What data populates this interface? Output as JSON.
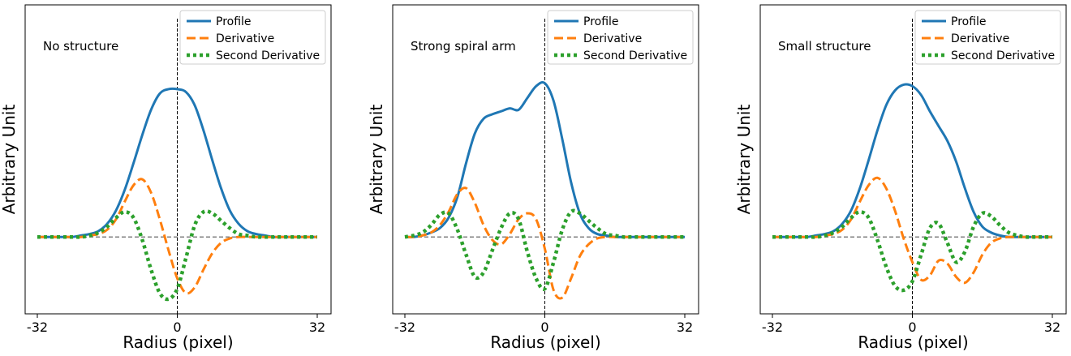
{
  "figure": {
    "legend_labels": [
      "Profile",
      "Derivative",
      "Second Derivative"
    ],
    "legend_location": "top-right",
    "colors": {
      "profile": "#1f77b4",
      "derivative": "#ff7f0e",
      "second": "#2ca02c",
      "baseline": "#808080",
      "center": "#000000"
    }
  },
  "chart_data": [
    {
      "type": "line",
      "annotation": "No structure",
      "xlabel": "Radius (pixel)",
      "ylabel": "Arbitrary Unit",
      "xticks": [
        "-32",
        "0",
        "32"
      ],
      "xlim": [
        -32,
        32
      ],
      "ylim": [
        -0.52,
        1.57
      ],
      "grid": false,
      "x": [
        -32,
        -30,
        -28,
        -26,
        -24,
        -22,
        -20,
        -18,
        -16,
        -14,
        -12,
        -10,
        -8,
        -6,
        -4,
        -2,
        0,
        2,
        4,
        6,
        8,
        10,
        12,
        14,
        16,
        18,
        20,
        22,
        24,
        26,
        28,
        30,
        32
      ],
      "series": [
        {
          "name": "Profile",
          "style": "solid",
          "values": [
            0,
            0,
            0,
            0,
            0,
            0.01,
            0.02,
            0.04,
            0.09,
            0.18,
            0.32,
            0.5,
            0.69,
            0.86,
            0.97,
            1.0,
            1.0,
            0.98,
            0.89,
            0.72,
            0.52,
            0.33,
            0.18,
            0.09,
            0.04,
            0.02,
            0.01,
            0,
            0,
            0,
            0,
            0,
            0
          ]
        },
        {
          "name": "Derivative",
          "style": "dashed",
          "values": [
            0,
            0,
            0,
            0,
            0,
            0,
            0.01,
            0.02,
            0.05,
            0.12,
            0.24,
            0.35,
            0.39,
            0.3,
            0.12,
            -0.09,
            -0.28,
            -0.38,
            -0.34,
            -0.22,
            -0.11,
            -0.04,
            -0.01,
            0,
            0,
            0,
            0,
            0,
            0,
            0,
            0,
            0,
            0
          ]
        },
        {
          "name": "Second Derivative",
          "style": "dotted",
          "values": [
            0,
            0,
            0,
            0,
            0,
            0,
            0.01,
            0.03,
            0.07,
            0.13,
            0.17,
            0.13,
            -0.02,
            -0.22,
            -0.38,
            -0.42,
            -0.35,
            -0.14,
            0.08,
            0.17,
            0.16,
            0.11,
            0.06,
            0.02,
            0.01,
            0,
            0,
            0,
            0,
            0,
            0,
            0,
            0
          ]
        }
      ]
    },
    {
      "type": "line",
      "annotation": "Strong spiral arm",
      "xlabel": "Radius (pixel)",
      "ylabel": "Arbitrary Unit",
      "xticks": [
        "-32",
        "0",
        "32"
      ],
      "xlim": [
        -32,
        32
      ],
      "ylim": [
        -0.52,
        1.57
      ],
      "grid": false,
      "x": [
        -32,
        -30,
        -28,
        -26,
        -24,
        -22,
        -20,
        -18,
        -16,
        -14,
        -12,
        -10,
        -8,
        -6,
        -4,
        -2,
        0,
        2,
        4,
        6,
        8,
        10,
        12,
        14,
        16,
        18,
        20,
        22,
        24,
        26,
        28,
        30,
        32
      ],
      "series": [
        {
          "name": "Profile",
          "style": "solid",
          "values": [
            0,
            0,
            0.01,
            0.03,
            0.06,
            0.13,
            0.27,
            0.5,
            0.7,
            0.8,
            0.83,
            0.85,
            0.87,
            0.86,
            0.94,
            1.02,
            1.04,
            0.92,
            0.66,
            0.37,
            0.16,
            0.06,
            0.02,
            0.01,
            0,
            0,
            0,
            0,
            0,
            0,
            0,
            0,
            0
          ]
        },
        {
          "name": "Derivative",
          "style": "dashed",
          "values": [
            0,
            0,
            0.01,
            0.03,
            0.08,
            0.17,
            0.29,
            0.33,
            0.23,
            0.08,
            -0.02,
            -0.05,
            0.02,
            0.12,
            0.16,
            0.12,
            -0.08,
            -0.36,
            -0.41,
            -0.28,
            -0.13,
            -0.05,
            -0.01,
            0,
            0,
            0,
            0,
            0,
            0,
            0,
            0,
            0,
            0
          ]
        },
        {
          "name": "Second Derivative",
          "style": "dotted",
          "values": [
            0,
            0.01,
            0.03,
            0.08,
            0.15,
            0.16,
            0.05,
            -0.12,
            -0.27,
            -0.24,
            -0.09,
            0.06,
            0.16,
            0.12,
            -0.1,
            -0.28,
            -0.35,
            -0.17,
            0.05,
            0.17,
            0.16,
            0.11,
            0.06,
            0.02,
            0.01,
            0,
            0,
            0,
            0,
            0,
            0,
            0,
            0
          ]
        }
      ]
    },
    {
      "type": "line",
      "annotation": "Small structure",
      "xlabel": "Radius (pixel)",
      "ylabel": "Arbitrary Unit",
      "xticks": [
        "-32",
        "0",
        "32"
      ],
      "xlim": [
        -32,
        32
      ],
      "ylim": [
        -0.52,
        1.57
      ],
      "grid": false,
      "x": [
        -32,
        -30,
        -28,
        -26,
        -24,
        -22,
        -20,
        -18,
        -16,
        -14,
        -12,
        -10,
        -8,
        -6,
        -4,
        -2,
        0,
        2,
        4,
        6,
        8,
        10,
        12,
        14,
        16,
        18,
        20,
        22,
        24,
        26,
        28,
        30,
        32
      ],
      "series": [
        {
          "name": "Profile",
          "style": "solid",
          "values": [
            0,
            0,
            0,
            0,
            0,
            0.01,
            0.02,
            0.04,
            0.09,
            0.18,
            0.33,
            0.52,
            0.72,
            0.89,
            0.99,
            1.03,
            1.02,
            0.96,
            0.85,
            0.75,
            0.65,
            0.51,
            0.33,
            0.17,
            0.07,
            0.03,
            0.01,
            0,
            0,
            0,
            0,
            0,
            0
          ]
        },
        {
          "name": "Derivative",
          "style": "dashed",
          "values": [
            0,
            0,
            0,
            0,
            0,
            0,
            0.01,
            0.02,
            0.05,
            0.12,
            0.24,
            0.35,
            0.4,
            0.33,
            0.18,
            -0.01,
            -0.17,
            -0.29,
            -0.26,
            -0.16,
            -0.18,
            -0.27,
            -0.31,
            -0.24,
            -0.12,
            -0.04,
            -0.01,
            0,
            0,
            0,
            0,
            0,
            0
          ]
        },
        {
          "name": "Second Derivative",
          "style": "dotted",
          "values": [
            0,
            0,
            0,
            0,
            0,
            0,
            0.01,
            0.03,
            0.07,
            0.13,
            0.17,
            0.13,
            -0.02,
            -0.2,
            -0.33,
            -0.36,
            -0.3,
            -0.12,
            0.06,
            0.09,
            -0.04,
            -0.17,
            -0.1,
            0.07,
            0.16,
            0.14,
            0.08,
            0.03,
            0.01,
            0,
            0,
            0,
            0
          ]
        }
      ]
    }
  ]
}
